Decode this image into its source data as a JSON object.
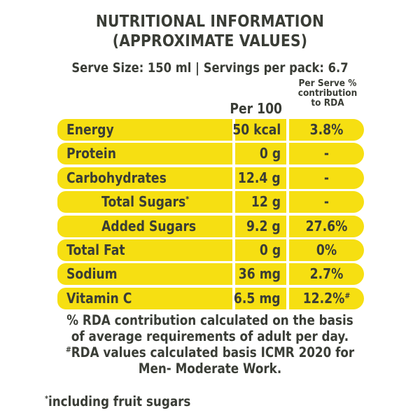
{
  "heading": {
    "line1": "NUTRITIONAL INFORMATION",
    "line2": "(APPROXIMATE VALUES)"
  },
  "serve_info": "Serve Size: 150 ml | Servings per pack: 6.7",
  "columns": {
    "per100": "Per 100 ml",
    "rda_line1": "Per Serve %",
    "rda_line2": "contribution",
    "rda_line3": "to RDA"
  },
  "rows": [
    {
      "name": "Energy",
      "value": "50 kcal",
      "rda": "3.8%"
    },
    {
      "name": "Protein",
      "value": "0 g",
      "rda": "-"
    },
    {
      "name": "Carbohydrates",
      "value": "12.4 g",
      "rda": "-"
    },
    {
      "name": "Total Sugars",
      "name_mark": "*",
      "value": "12 g",
      "rda": "-"
    },
    {
      "name": "Added Sugars",
      "value": "9.2 g",
      "rda": "27.6%"
    },
    {
      "name": "Total Fat",
      "value": "0 g",
      "rda": "0%"
    },
    {
      "name": "Sodium",
      "value": "36 mg",
      "rda": "2.7%"
    },
    {
      "name": "Vitamin C",
      "value": "6.5 mg",
      "rda": "12.2%",
      "rda_mark": "#"
    }
  ],
  "notes": {
    "line1": "% RDA contribution calculated on the basis",
    "line2": "of average requirements of adult per day.",
    "line3_mark": "#",
    "line3": "RDA values calculated basis ICMR 2020 for",
    "line4": "Men- Moderate Work."
  },
  "footnote": {
    "mark": "*",
    "text": "including fruit sugars"
  },
  "colors": {
    "row_fill": "#f6df12",
    "text": "#3a3d36"
  }
}
